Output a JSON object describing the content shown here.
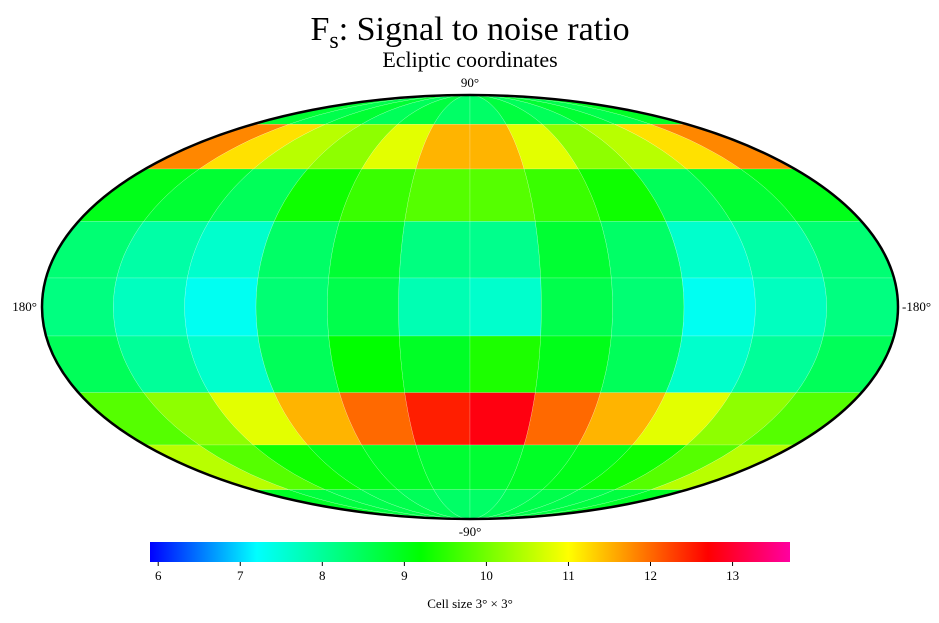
{
  "chart_data": {
    "type": "mollweide",
    "title": "F",
    "title_subscript": "s",
    "title_rest": ": Signal to noise ratio",
    "subtitle": "Ecliptic coordinates",
    "lat_labels": [
      "90°",
      "-90°"
    ],
    "lon_labels": [
      "180°",
      "-180°"
    ],
    "lat_edges": [
      90,
      70,
      50,
      30,
      10,
      -10,
      -30,
      -50,
      -70,
      -90
    ],
    "lon_edges": [
      180,
      150,
      120,
      90,
      60,
      30,
      0,
      -30,
      -60,
      -90,
      -120,
      -150,
      -180
    ],
    "values": [
      [
        8.8,
        8.6,
        8.8,
        8.5,
        8.7,
        8.4,
        8.4,
        8.7,
        8.5,
        8.8,
        8.6,
        8.9
      ],
      [
        11.8,
        11.2,
        10.5,
        10.2,
        10.8,
        11.5,
        11.5,
        10.8,
        10.2,
        10.5,
        11.2,
        11.8
      ],
      [
        9.0,
        8.8,
        8.5,
        9.3,
        9.6,
        9.8,
        9.8,
        9.6,
        9.3,
        8.5,
        8.8,
        9.0
      ],
      [
        8.3,
        7.9,
        7.6,
        8.4,
        8.8,
        8.2,
        8.1,
        8.8,
        8.4,
        7.6,
        7.9,
        8.3
      ],
      [
        8.2,
        7.7,
        7.3,
        8.3,
        8.6,
        7.8,
        7.6,
        8.6,
        8.3,
        7.3,
        7.7,
        8.2
      ],
      [
        8.5,
        8.0,
        7.6,
        8.5,
        9.2,
        8.9,
        9.4,
        9.0,
        8.5,
        7.6,
        8.0,
        8.5
      ],
      [
        9.8,
        10.2,
        10.8,
        11.5,
        12.0,
        12.5,
        12.8,
        12.0,
        11.5,
        10.8,
        10.2,
        9.8
      ],
      [
        10.5,
        9.8,
        9.3,
        9.0,
        8.9,
        8.8,
        8.8,
        8.9,
        9.0,
        9.3,
        9.8,
        10.5
      ],
      [
        8.9,
        8.7,
        8.6,
        8.6,
        8.5,
        8.4,
        8.4,
        8.5,
        8.6,
        8.6,
        8.7,
        8.9
      ]
    ],
    "colorscale": [
      [
        5.9,
        "#0000ff"
      ],
      [
        7.2,
        "#00ffff"
      ],
      [
        9.2,
        "#00ff00"
      ],
      [
        11,
        "#ffff00"
      ],
      [
        12.7,
        "#ff0000"
      ],
      [
        13.7,
        "#ff00a0"
      ]
    ],
    "clim": [
      5.9,
      13.7
    ],
    "cticks": [
      6,
      7,
      8,
      9,
      10,
      11,
      12,
      13
    ],
    "footnote": "Cell size 3° × 3°"
  }
}
